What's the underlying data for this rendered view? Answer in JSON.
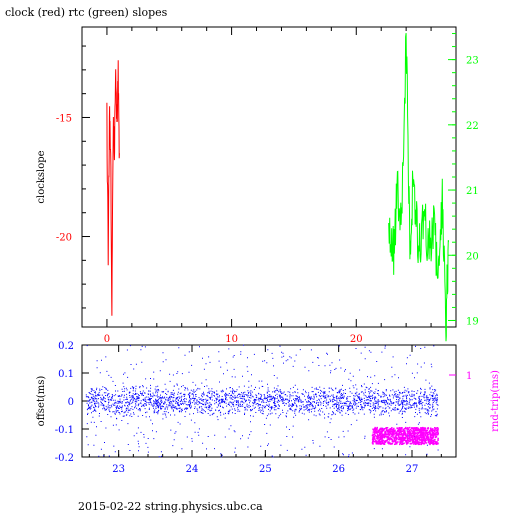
{
  "header": {
    "title": "clock (red) rtc (green) slopes"
  },
  "footer": {
    "text": "2015-02-22 string.physics.ubc.ca"
  },
  "colors": {
    "clock": "#ff0000",
    "rtc": "#00ff00",
    "offset": "#0000ff",
    "rtt": "#ff00ff",
    "frame": "#000000"
  },
  "chart_data": [
    {
      "type": "line",
      "title": "clock (red) rtc (green) slopes",
      "ylabel": "clockslope",
      "xlim": [
        -2,
        28
      ],
      "ylim": [
        -23.8,
        -11.2
      ],
      "xticks": [
        0,
        10,
        20
      ],
      "yticks": [
        -15,
        -20
      ],
      "right_axis": {
        "ylim": [
          18.9,
          23.5
        ],
        "ticks": [
          19,
          20,
          21,
          22,
          23
        ]
      },
      "series": [
        {
          "color": "red",
          "axis": "left",
          "x": [
            0.0,
            0.1,
            0.2,
            0.3,
            0.4,
            0.5,
            0.6,
            0.7,
            0.8,
            0.9,
            1.0
          ],
          "y": [
            -15.0,
            -21.0,
            -14.8,
            -16.2,
            -23.2,
            -15.2,
            -17.0,
            -12.8,
            -15.5,
            -13.2,
            -16.5
          ]
        },
        {
          "color": "green",
          "axis": "right",
          "x": [
            22.6,
            23.0,
            23.3,
            23.6,
            24.0,
            24.3,
            24.6,
            25.0,
            25.4,
            25.8,
            26.2,
            26.6,
            26.9,
            27.2,
            27.4
          ],
          "y": [
            20.6,
            20.0,
            21.0,
            20.4,
            23.3,
            20.2,
            21.2,
            20.0,
            20.6,
            20.1,
            20.4,
            19.7,
            20.9,
            19.0,
            20.2
          ]
        }
      ]
    },
    {
      "type": "scatter",
      "ylabel": "offset(ms)",
      "ylabel_right": "rnd-trip(ms)",
      "xlim": [
        22.5,
        27.6
      ],
      "ylim": [
        -0.2,
        0.2
      ],
      "xticks": [
        23,
        24,
        25,
        26,
        27
      ],
      "yticks": [
        0.2,
        0.1,
        0,
        -0.1,
        -0.2
      ],
      "right_ticks": [
        1
      ],
      "series": [
        {
          "color": "blue",
          "x_range": [
            22.55,
            27.35
          ],
          "y_center": 0.0,
          "spread": 0.03,
          "outlier_range": [
            -0.2,
            0.2
          ]
        },
        {
          "color": "magenta",
          "x_range": [
            26.45,
            27.35
          ],
          "y_band": [
            -0.155,
            -0.095
          ]
        }
      ]
    }
  ]
}
